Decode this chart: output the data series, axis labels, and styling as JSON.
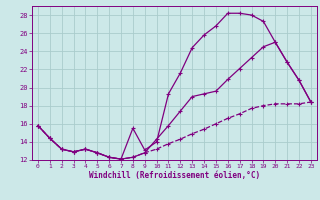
{
  "xlabel": "Windchill (Refroidissement éolien,°C)",
  "bg_color": "#cce8e8",
  "line_color": "#800080",
  "grid_color": "#aacccc",
  "xlim": [
    -0.5,
    23.5
  ],
  "ylim": [
    12,
    29
  ],
  "yticks": [
    12,
    14,
    16,
    18,
    20,
    22,
    24,
    26,
    28
  ],
  "xticks": [
    0,
    1,
    2,
    3,
    4,
    5,
    6,
    7,
    8,
    9,
    10,
    11,
    12,
    13,
    14,
    15,
    16,
    17,
    18,
    19,
    20,
    21,
    22,
    23
  ],
  "line1_x": [
    0,
    1,
    2,
    3,
    4,
    5,
    6,
    7,
    8,
    9,
    10,
    11,
    12,
    13,
    14,
    15,
    16,
    17,
    18,
    19,
    20,
    21,
    22,
    23
  ],
  "line1_y": [
    15.8,
    14.4,
    13.2,
    12.9,
    13.2,
    12.8,
    12.3,
    12.1,
    15.5,
    13.1,
    14.0,
    19.3,
    21.6,
    24.4,
    25.8,
    26.8,
    28.2,
    28.2,
    28.0,
    27.3,
    25.0,
    22.8,
    20.8,
    18.4
  ],
  "line2_x": [
    0,
    1,
    2,
    3,
    4,
    5,
    6,
    7,
    8,
    9,
    10,
    11,
    12,
    13,
    14,
    15,
    16,
    17,
    18,
    19,
    20,
    21,
    22,
    23
  ],
  "line2_y": [
    15.8,
    14.4,
    13.2,
    12.9,
    13.2,
    12.8,
    12.3,
    12.1,
    12.3,
    12.8,
    13.2,
    13.8,
    14.3,
    14.9,
    15.4,
    16.0,
    16.6,
    17.1,
    17.7,
    18.0,
    18.2,
    18.2,
    18.2,
    18.4
  ],
  "line3_x": [
    0,
    1,
    2,
    3,
    4,
    5,
    6,
    7,
    8,
    9,
    10,
    11,
    12,
    13,
    14,
    15,
    16,
    17,
    18,
    19,
    20,
    21,
    22,
    23
  ],
  "line3_y": [
    15.8,
    14.4,
    13.2,
    12.9,
    13.2,
    12.8,
    12.3,
    12.1,
    12.3,
    12.8,
    14.3,
    15.8,
    17.4,
    19.0,
    19.3,
    19.6,
    20.9,
    22.1,
    23.3,
    24.5,
    25.0,
    22.8,
    20.8,
    18.4
  ]
}
